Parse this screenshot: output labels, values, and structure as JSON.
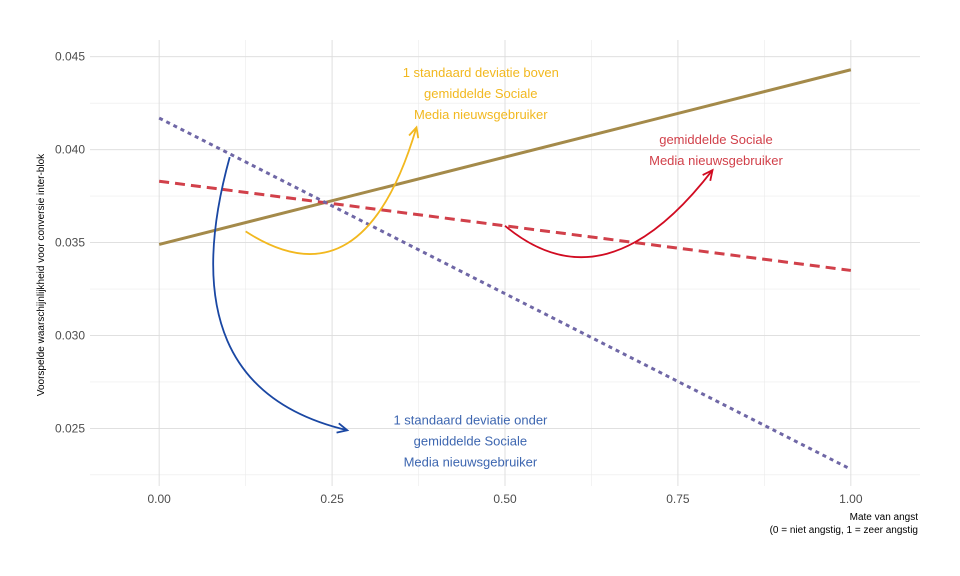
{
  "chart_data": {
    "type": "line",
    "title": "",
    "xlabel_lines": [
      "Mate van angst",
      "(0 = niet angstig, 1 = zeer angstig"
    ],
    "ylabel": "Voorspelde waarschijnlijkheid voor conversie inter-blok",
    "xlim": [
      -0.1,
      1.1
    ],
    "ylim": [
      0.0219,
      0.0459
    ],
    "x_ticks": [
      0.0,
      0.25,
      0.5,
      0.75,
      1.0
    ],
    "x_tick_labels": [
      "0.00",
      "0.25",
      "0.50",
      "0.75",
      "1.00"
    ],
    "y_ticks": [
      0.025,
      0.03,
      0.035,
      0.04,
      0.045
    ],
    "y_tick_labels": [
      "0.025",
      "0.030",
      "0.035",
      "0.040",
      "0.045"
    ],
    "grid": true,
    "legend": "none",
    "series": [
      {
        "id": "above",
        "color": "#a48a4a",
        "dash": "solid",
        "x": [
          0,
          1
        ],
        "y": [
          0.0349,
          0.0443
        ]
      },
      {
        "id": "mean",
        "color": "#d1404a",
        "dash": "dashed",
        "x": [
          0,
          1
        ],
        "y": [
          0.0383,
          0.0335
        ]
      },
      {
        "id": "below",
        "color": "#6f67a6",
        "dash": "dotted",
        "x": [
          0,
          1
        ],
        "y": [
          0.0417,
          0.0228
        ]
      }
    ],
    "annotations": [
      {
        "id": "above",
        "lines": [
          "1 standaard deviatie boven",
          "gemiddelde Sociale",
          "Media nieuwsgebruiker"
        ],
        "color": "#f2b81f",
        "x": 0.465,
        "y": 0.0439
      },
      {
        "id": "mean",
        "lines": [
          "gemiddelde Sociale",
          "Media nieuwsgebruiker"
        ],
        "color": "#d1404a",
        "x": 0.805,
        "y": 0.0403
      },
      {
        "id": "below",
        "lines": [
          "1 standaard deviatie onder",
          "gemiddelde Sociale",
          "Media nieuwsgebruiker"
        ],
        "color": "#3d66b0",
        "x": 0.45,
        "y": 0.0252
      }
    ],
    "arrows": [
      {
        "id": "above",
        "color": "#f2b81f",
        "points": [
          [
            0.125,
            0.0356
          ],
          [
            0.295,
            0.0315
          ],
          [
            0.372,
            0.0412
          ]
        ]
      },
      {
        "id": "mean",
        "color": "#d10b21",
        "points": [
          [
            0.5,
            0.0359
          ],
          [
            0.645,
            0.0314
          ],
          [
            0.8,
            0.0389
          ]
        ]
      },
      {
        "id": "below",
        "color": "#1a47a3",
        "points": [
          [
            0.102,
            0.0396
          ],
          [
            0.01,
            0.0272
          ],
          [
            0.272,
            0.0249
          ]
        ]
      }
    ]
  }
}
